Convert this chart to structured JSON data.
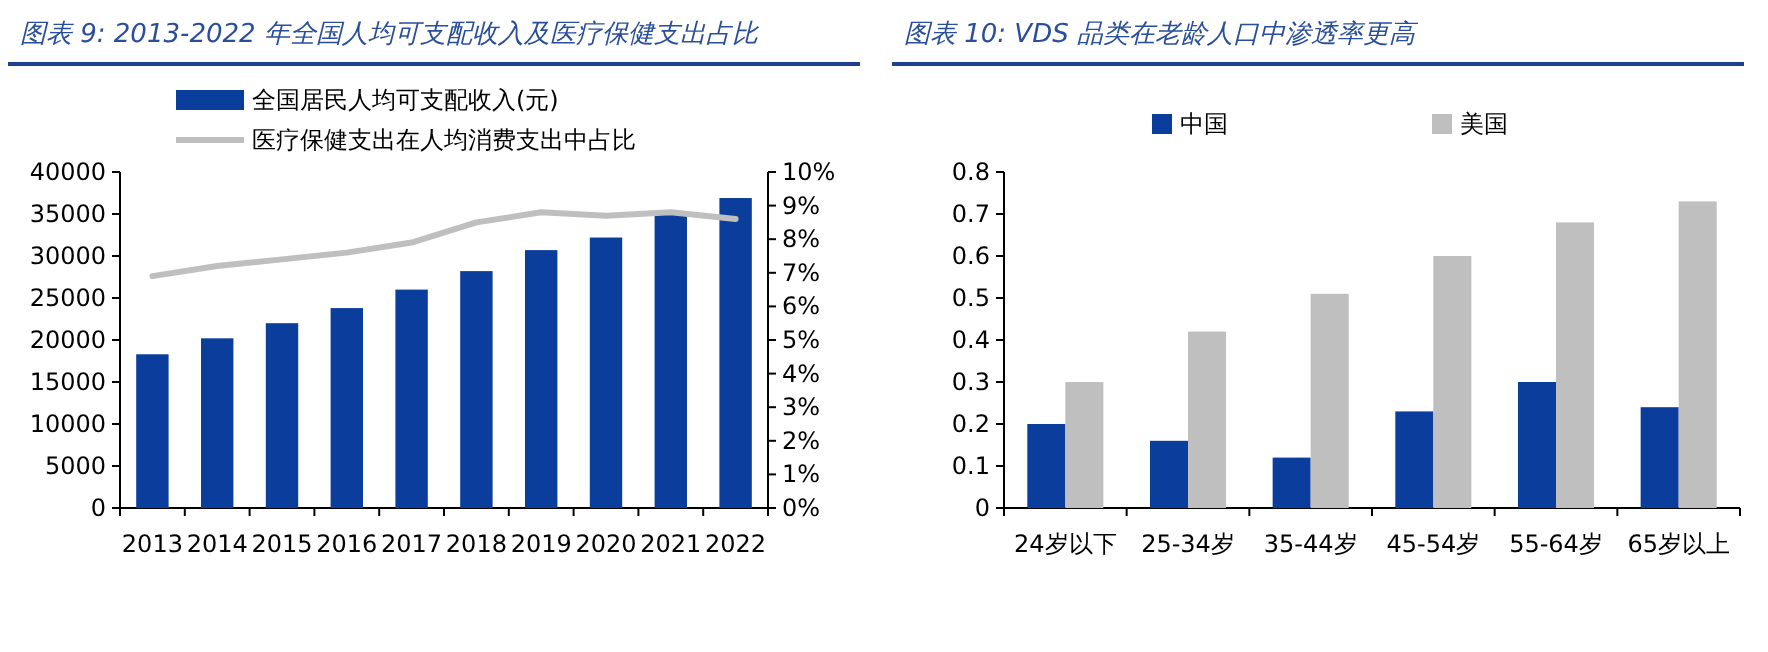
{
  "chart_data": [
    {
      "type": "bar",
      "title": "图表 9:  2013-2022 年全国人均可支配收入及医疗保健支出占比",
      "categories": [
        "2013",
        "2014",
        "2015",
        "2016",
        "2017",
        "2018",
        "2019",
        "2020",
        "2021",
        "2022"
      ],
      "series": [
        {
          "name": "全国居民人均可支配收入(元)",
          "color": "#0a3d9c",
          "values": [
            18300,
            20200,
            22000,
            23800,
            26000,
            28200,
            30700,
            32200,
            35100,
            36900
          ]
        },
        {
          "name": "医疗保健支出在人均消费支出中占比",
          "type": "line",
          "axis": "y2",
          "color": "#bfbfbf",
          "values": [
            6.9,
            7.2,
            7.4,
            7.6,
            7.9,
            8.5,
            8.8,
            8.7,
            8.8,
            8.6
          ]
        }
      ],
      "ylim": [
        0,
        40000
      ],
      "yticks": [
        0,
        5000,
        10000,
        15000,
        20000,
        25000,
        30000,
        35000,
        40000
      ],
      "y2lim": [
        0,
        10
      ],
      "y2ticks": [
        {
          "value": 0,
          "label": "0%"
        },
        {
          "value": 1,
          "label": "1%"
        },
        {
          "value": 2,
          "label": "2%"
        },
        {
          "value": 3,
          "label": "3%"
        },
        {
          "value": 4,
          "label": "4%"
        },
        {
          "value": 5,
          "label": "5%"
        },
        {
          "value": 6,
          "label": "6%"
        },
        {
          "value": 7,
          "label": "7%"
        },
        {
          "value": 8,
          "label": "8%"
        },
        {
          "value": 9,
          "label": "9%"
        },
        {
          "value": 10,
          "label": "10%"
        }
      ],
      "legend": "top left"
    },
    {
      "type": "bar",
      "title": "图表 10:  VDS 品类在老龄人口中渗透率更高",
      "categories": [
        "24岁以下",
        "25-34岁",
        "35-44岁",
        "45-54岁",
        "55-64岁",
        "65岁以上"
      ],
      "series": [
        {
          "name": "中国",
          "color": "#0a3d9c",
          "values": [
            0.2,
            0.16,
            0.12,
            0.23,
            0.3,
            0.24
          ]
        },
        {
          "name": "美国",
          "color": "#bfbfbf",
          "values": [
            0.3,
            0.42,
            0.51,
            0.6,
            0.68,
            0.73
          ]
        }
      ],
      "ylim": [
        0,
        0.8
      ],
      "yticks": [
        0,
        0.1,
        0.2,
        0.3,
        0.4,
        0.5,
        0.6,
        0.7,
        0.8
      ],
      "legend": "top"
    }
  ]
}
